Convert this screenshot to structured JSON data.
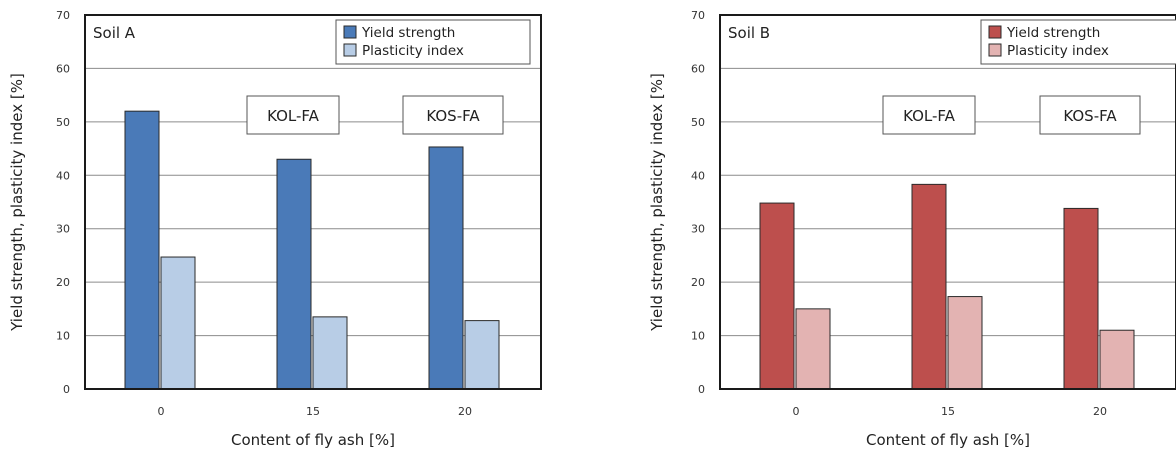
{
  "chart_data": [
    {
      "type": "bar",
      "title": "Soil A",
      "xlabel": "Content of fly ash [%]",
      "ylabel": "Yield strength, plasticity index [%]",
      "categories": [
        "0",
        "15",
        "20"
      ],
      "ylim": [
        0,
        70
      ],
      "yticks": [
        0,
        10,
        20,
        30,
        40,
        50,
        60,
        70
      ],
      "grid": true,
      "legend_position": "top-right",
      "series": [
        {
          "name": "Yield strength",
          "values": [
            52,
            43,
            45.3
          ],
          "color": "#4a7ab8"
        },
        {
          "name": "Plasticity index",
          "values": [
            24.7,
            13.5,
            12.8
          ],
          "color": "#b8cde6"
        }
      ],
      "annotations": [
        "KOL-FA",
        "KOS-FA"
      ]
    },
    {
      "type": "bar",
      "title": "Soil B",
      "xlabel": "Content of fly ash [%]",
      "ylabel": "Yield strength, plasticity index [%]",
      "categories": [
        "0",
        "15",
        "20"
      ],
      "ylim": [
        0,
        70
      ],
      "yticks": [
        0,
        10,
        20,
        30,
        40,
        50,
        60,
        70
      ],
      "grid": true,
      "legend_position": "top-right",
      "series": [
        {
          "name": "Yield strength",
          "values": [
            34.8,
            38.3,
            33.8
          ],
          "color": "#bd4f4d"
        },
        {
          "name": "Plasticity index",
          "values": [
            15,
            17.3,
            11
          ],
          "color": "#e3b3b2"
        }
      ],
      "annotations": [
        "KOL-FA",
        "KOS-FA"
      ]
    }
  ]
}
